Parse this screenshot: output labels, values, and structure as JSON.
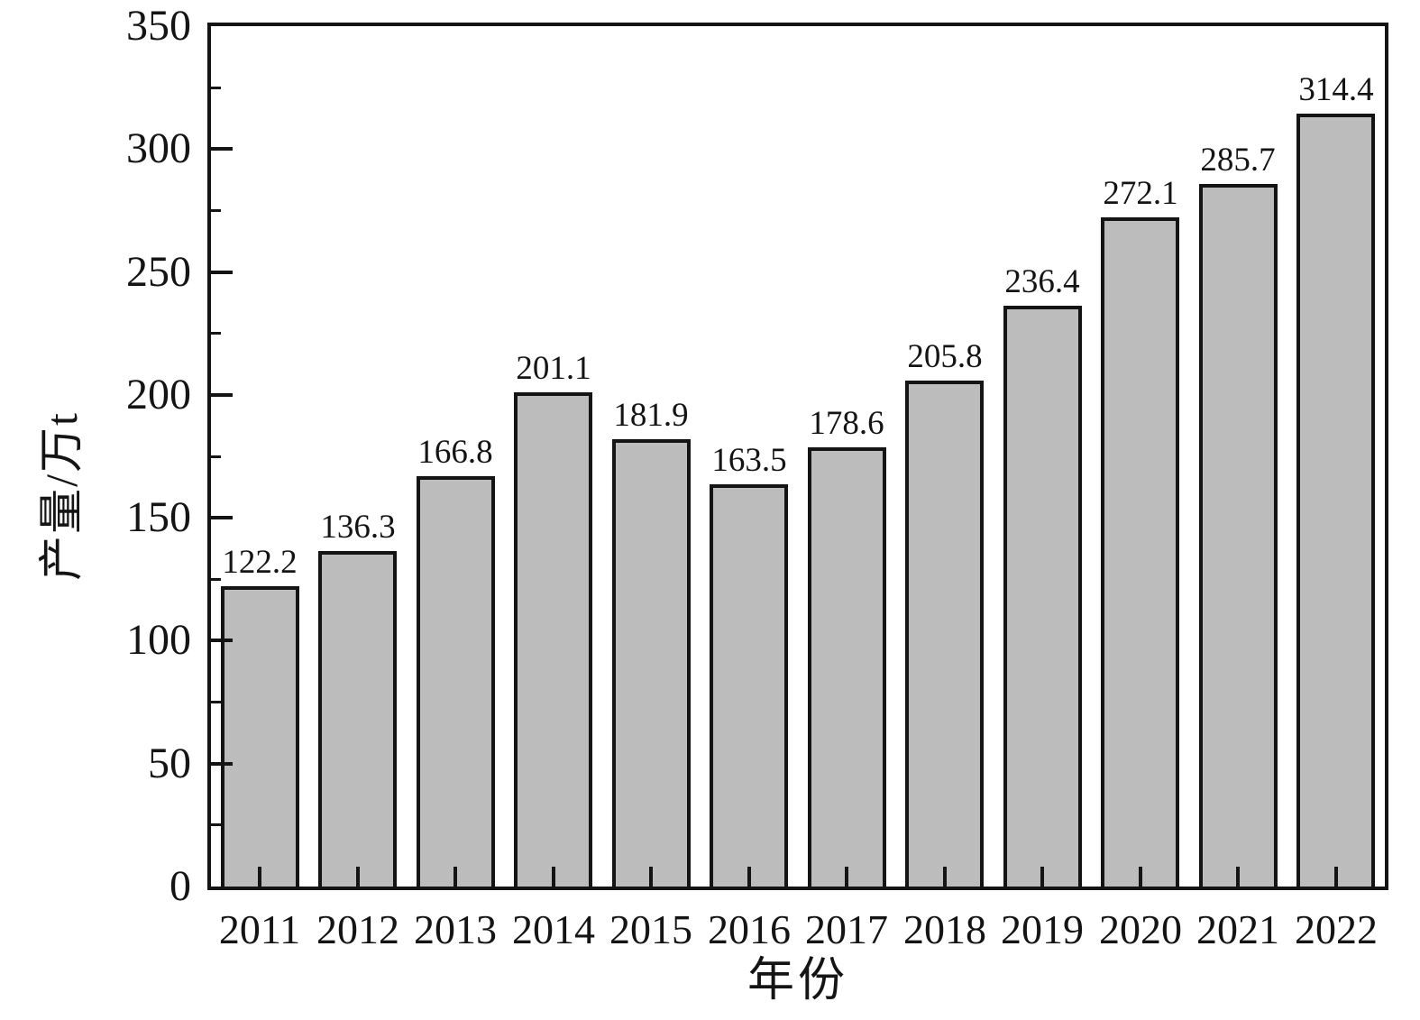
{
  "chart_data": {
    "type": "bar",
    "title": "",
    "xlabel": "年份",
    "ylabel": "产量/万t",
    "categories": [
      "2011",
      "2012",
      "2013",
      "2014",
      "2015",
      "2016",
      "2017",
      "2018",
      "2019",
      "2020",
      "2021",
      "2022"
    ],
    "values": [
      122.2,
      136.3,
      166.8,
      201.1,
      181.9,
      163.5,
      178.6,
      205.8,
      236.4,
      272.1,
      285.7,
      314.4
    ],
    "value_labels": [
      "122.2",
      "136.3",
      "166.8",
      "201.1",
      "181.9",
      "163.5",
      "178.6",
      "205.8",
      "236.4",
      "272.1",
      "285.7",
      "314.4"
    ],
    "ylim": [
      0,
      350
    ],
    "yticks": [
      0,
      50,
      100,
      150,
      200,
      250,
      300,
      350
    ],
    "ytick_labels": [
      "0",
      "50",
      "100",
      "150",
      "200",
      "250",
      "300",
      "350"
    ],
    "yticks_minor": [
      25,
      75,
      125,
      175,
      225,
      275,
      325
    ],
    "grid": false,
    "legend": "none",
    "tick_direction": "in",
    "colors": {
      "bar_fill": "#bcbcbc",
      "bar_border": "#141414",
      "axis": "#141414",
      "text": "#141414",
      "background": "#ffffff"
    }
  }
}
